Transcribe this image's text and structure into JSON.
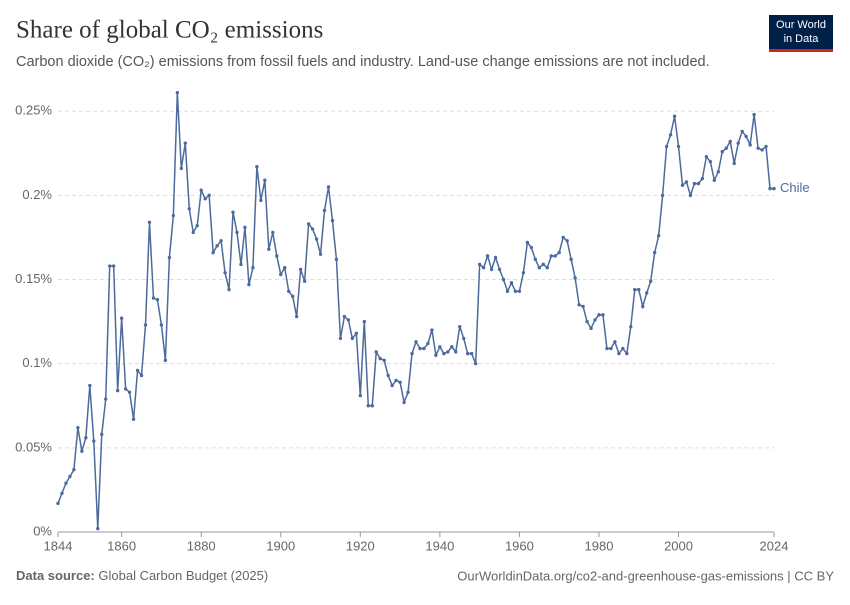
{
  "header": {
    "title": "Share of global CO₂ emissions",
    "subtitle": "Carbon dioxide (CO₂) emissions from fossil fuels and industry. Land-use change emissions are not included.",
    "logo": [
      "Our World",
      "in Data"
    ]
  },
  "footer": {
    "source_label": "Data source:",
    "source": "Global Carbon Budget (2025)",
    "url": "OurWorldinData.org/co2-and-greenhouse-gas-emissions | CC BY"
  },
  "chart_data": {
    "type": "line",
    "x": [
      1844,
      1845,
      1846,
      1847,
      1848,
      1849,
      1850,
      1851,
      1852,
      1853,
      1854,
      1855,
      1856,
      1857,
      1858,
      1859,
      1860,
      1861,
      1862,
      1863,
      1864,
      1865,
      1866,
      1867,
      1868,
      1869,
      1870,
      1871,
      1872,
      1873,
      1874,
      1875,
      1876,
      1877,
      1878,
      1879,
      1880,
      1881,
      1882,
      1883,
      1884,
      1885,
      1886,
      1887,
      1888,
      1889,
      1890,
      1891,
      1892,
      1893,
      1894,
      1895,
      1896,
      1897,
      1898,
      1899,
      1900,
      1901,
      1902,
      1903,
      1904,
      1905,
      1906,
      1907,
      1908,
      1909,
      1910,
      1911,
      1912,
      1913,
      1914,
      1915,
      1916,
      1917,
      1918,
      1919,
      1920,
      1921,
      1922,
      1923,
      1924,
      1925,
      1926,
      1927,
      1928,
      1929,
      1930,
      1931,
      1932,
      1933,
      1934,
      1935,
      1936,
      1937,
      1938,
      1939,
      1940,
      1941,
      1942,
      1943,
      1944,
      1945,
      1946,
      1947,
      1948,
      1949,
      1950,
      1951,
      1952,
      1953,
      1954,
      1955,
      1956,
      1957,
      1958,
      1959,
      1960,
      1961,
      1962,
      1963,
      1964,
      1965,
      1966,
      1967,
      1968,
      1969,
      1970,
      1971,
      1972,
      1973,
      1974,
      1975,
      1976,
      1977,
      1978,
      1979,
      1980,
      1981,
      1982,
      1983,
      1984,
      1985,
      1986,
      1987,
      1988,
      1989,
      1990,
      1991,
      1992,
      1993,
      1994,
      1995,
      1996,
      1997,
      1998,
      1999,
      2000,
      2001,
      2002,
      2003,
      2004,
      2005,
      2006,
      2007,
      2008,
      2009,
      2010,
      2011,
      2012,
      2013,
      2014,
      2015,
      2016,
      2017,
      2018,
      2019,
      2020,
      2021,
      2022,
      2023,
      2024
    ],
    "series": [
      {
        "name": "Chile",
        "color": "#4c6a9c",
        "values": [
          0.017,
          0.023,
          0.029,
          0.033,
          0.037,
          0.062,
          0.048,
          0.056,
          0.087,
          0.054,
          0.002,
          0.058,
          0.079,
          0.158,
          0.158,
          0.084,
          0.127,
          0.085,
          0.083,
          0.067,
          0.096,
          0.093,
          0.123,
          0.184,
          0.139,
          0.138,
          0.123,
          0.102,
          0.163,
          0.188,
          0.261,
          0.216,
          0.231,
          0.192,
          0.178,
          0.182,
          0.203,
          0.198,
          0.2,
          0.166,
          0.17,
          0.173,
          0.154,
          0.144,
          0.19,
          0.178,
          0.159,
          0.181,
          0.147,
          0.157,
          0.217,
          0.197,
          0.209,
          0.168,
          0.178,
          0.164,
          0.153,
          0.157,
          0.143,
          0.14,
          0.128,
          0.156,
          0.149,
          0.183,
          0.18,
          0.174,
          0.165,
          0.191,
          0.205,
          0.185,
          0.162,
          0.115,
          0.128,
          0.126,
          0.115,
          0.118,
          0.081,
          0.125,
          0.075,
          0.075,
          0.107,
          0.103,
          0.102,
          0.093,
          0.087,
          0.09,
          0.089,
          0.077,
          0.083,
          0.106,
          0.113,
          0.109,
          0.109,
          0.112,
          0.12,
          0.105,
          0.11,
          0.106,
          0.107,
          0.11,
          0.107,
          0.122,
          0.115,
          0.106,
          0.106,
          0.1,
          0.159,
          0.157,
          0.164,
          0.156,
          0.163,
          0.156,
          0.15,
          0.143,
          0.148,
          0.143,
          0.143,
          0.154,
          0.172,
          0.169,
          0.162,
          0.157,
          0.159,
          0.157,
          0.164,
          0.164,
          0.166,
          0.175,
          0.173,
          0.162,
          0.151,
          0.135,
          0.134,
          0.125,
          0.121,
          0.126,
          0.129,
          0.129,
          0.109,
          0.109,
          0.113,
          0.106,
          0.109,
          0.106,
          0.122,
          0.144,
          0.144,
          0.134,
          0.142,
          0.149,
          0.166,
          0.176,
          0.2,
          0.229,
          0.236,
          0.247,
          0.229,
          0.206,
          0.208,
          0.2,
          0.207,
          0.207,
          0.21,
          0.223,
          0.22,
          0.209,
          0.214,
          0.226,
          0.228,
          0.232,
          0.219,
          0.231,
          0.238,
          0.235,
          0.23,
          0.248,
          0.228,
          0.227,
          0.229,
          0.204,
          0.204
        ]
      }
    ],
    "xlim": [
      1844,
      2024
    ],
    "xticks": [
      1844,
      1860,
      1880,
      1900,
      1920,
      1940,
      1960,
      1980,
      2000,
      2024
    ],
    "ylim": [
      0,
      0.262
    ],
    "yticks": [
      {
        "value": 0,
        "label": "0%"
      },
      {
        "value": 0.05,
        "label": "0.05%"
      },
      {
        "value": 0.1,
        "label": "0.1%"
      },
      {
        "value": 0.15,
        "label": "0.15%"
      },
      {
        "value": 0.2,
        "label": "0.2%"
      },
      {
        "value": 0.25,
        "label": "0.25%"
      }
    ],
    "grid": true
  }
}
